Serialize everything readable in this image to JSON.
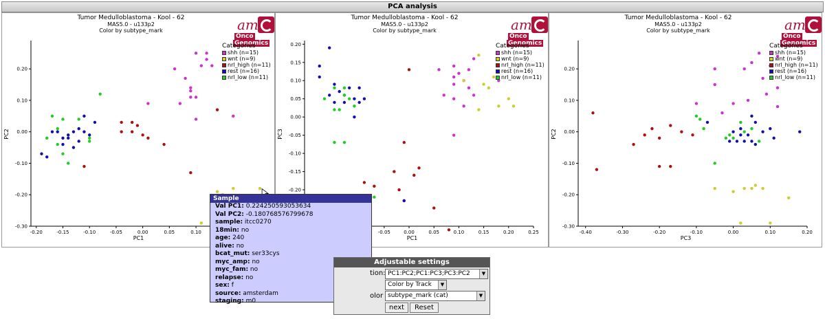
{
  "header": {
    "title": "PCA analysis"
  },
  "panels": [
    {
      "title": "Tumor Medulloblastoma - Kool - 62",
      "sub1": "MAS5.0 - u133p2",
      "sub2": "Color by subtype_mark"
    },
    {
      "title": "Tumor Medulloblastoma - Kool - 62",
      "sub1": "MAS5.0 - u133p2",
      "sub2": "Color by subtype_mark"
    },
    {
      "title": "Tumor Medulloblastoma - Kool - 62",
      "sub1": "MAS5.0 - u133p2",
      "sub2": "Color by subtype_mark"
    }
  ],
  "logo": {
    "line1": "am",
    "line2": "Onco",
    "line3": "Genomics"
  },
  "legend": {
    "title": "Categories",
    "items": [
      {
        "label": "shh (n=15)",
        "color": "#cc33cc"
      },
      {
        "label": "wnt (n=9)",
        "color": "#cccc33"
      },
      {
        "label": "nrl_high (n=11)",
        "color": "#aa1111"
      },
      {
        "label": "rest (n=16)",
        "color": "#1111aa"
      },
      {
        "label": "nrl_low (n=11)",
        "color": "#22cc22"
      }
    ]
  },
  "chart_data": [
    {
      "type": "scatter",
      "xlabel": "PC1",
      "ylabel": "PC2",
      "xlim": [
        -0.21,
        0.22
      ],
      "ylim": [
        -0.3,
        0.29
      ],
      "xticks": [
        "-0.20",
        "-0.15",
        "-0.10",
        "-0.05",
        "0.00",
        "0.05",
        "0.10",
        "0.15",
        "0.20"
      ],
      "xtickvals": [
        -0.2,
        -0.15,
        -0.1,
        -0.05,
        0.0,
        0.05,
        0.1,
        0.15,
        0.2
      ],
      "yticks": [
        "0.20",
        "0.10",
        "0.00",
        "-0.10",
        "-0.20",
        "-0.30"
      ],
      "ytickvals": [
        0.2,
        0.1,
        0.0,
        -0.1,
        -0.2,
        -0.3
      ],
      "series": [
        {
          "name": "shh (n=15)",
          "color": "#cc33cc",
          "points": [
            [
              0.06,
              0.2
            ],
            [
              0.1,
              0.25
            ],
            [
              0.12,
              0.25
            ],
            [
              0.11,
              0.21
            ],
            [
              0.13,
              0.21
            ],
            [
              0.12,
              0.23
            ],
            [
              0.08,
              0.17
            ],
            [
              0.09,
              0.14
            ],
            [
              0.09,
              0.13
            ],
            [
              0.1,
              0.11
            ],
            [
              0.09,
              0.11
            ],
            [
              0.07,
              0.09
            ],
            [
              0.1,
              0.04
            ],
            [
              0.17,
              0.05
            ],
            [
              0.01,
              0.09
            ]
          ]
        },
        {
          "name": "wnt (n=9)",
          "color": "#cccc33",
          "points": [
            [
              0.14,
              -0.19
            ],
            [
              0.15,
              -0.2
            ],
            [
              0.17,
              -0.18
            ],
            [
              0.14,
              -0.21
            ],
            [
              0.2,
              -0.24
            ],
            [
              0.16,
              -0.26
            ],
            [
              0.11,
              -0.29
            ],
            [
              0.19,
              -0.29
            ],
            [
              0.22,
              -0.18
            ]
          ]
        },
        {
          "name": "nrl_high (n=11)",
          "color": "#aa1111",
          "points": [
            [
              -0.02,
              0.03
            ],
            [
              -0.01,
              0.02
            ],
            [
              -0.02,
              0.0
            ],
            [
              0.0,
              -0.01
            ],
            [
              0.01,
              -0.02
            ],
            [
              -0.04,
              0.0
            ],
            [
              -0.11,
              -0.11
            ],
            [
              0.04,
              -0.04
            ],
            [
              0.09,
              -0.13
            ],
            [
              0.14,
              0.07
            ],
            [
              -0.04,
              0.03
            ]
          ]
        },
        {
          "name": "rest (n=16)",
          "color": "#1111aa",
          "points": [
            [
              -0.19,
              -0.07
            ],
            [
              -0.17,
              0.0
            ],
            [
              -0.16,
              0.0
            ],
            [
              -0.15,
              -0.02
            ],
            [
              -0.14,
              -0.02
            ],
            [
              -0.15,
              -0.04
            ],
            [
              -0.13,
              -0.05
            ],
            [
              -0.12,
              0.01
            ],
            [
              -0.11,
              0.0
            ],
            [
              -0.1,
              -0.01
            ],
            [
              -0.09,
              0.03
            ],
            [
              -0.12,
              -0.03
            ],
            [
              -0.14,
              -0.01
            ],
            [
              -0.18,
              -0.08
            ],
            [
              -0.11,
              0.05
            ],
            [
              -0.13,
              0.0
            ]
          ]
        },
        {
          "name": "nrl_low (n=11)",
          "color": "#22cc22",
          "points": [
            [
              -0.17,
              0.05
            ],
            [
              -0.16,
              -0.04
            ],
            [
              -0.15,
              -0.07
            ],
            [
              -0.14,
              -0.1
            ],
            [
              -0.16,
              0.01
            ],
            [
              -0.18,
              -0.02
            ],
            [
              -0.1,
              -0.03
            ],
            [
              -0.08,
              0.12
            ],
            [
              -0.1,
              -0.02
            ],
            [
              -0.12,
              0.04
            ],
            [
              -0.15,
              0.04
            ]
          ]
        }
      ]
    },
    {
      "type": "scatter",
      "xlabel": "PC1",
      "ylabel": "PC3",
      "xlim": [
        -0.21,
        0.25
      ],
      "ylim": [
        -0.3,
        0.21
      ],
      "xticks": [
        "-0.05",
        "0.00",
        "0.05",
        "0.10",
        "0.15",
        "0.20",
        "0.25"
      ],
      "xtickvals": [
        -0.05,
        0.0,
        0.05,
        0.1,
        0.15,
        0.2,
        0.25
      ],
      "yticks": [
        "0.20",
        "0.15",
        "0.10",
        "0.05",
        "0.00",
        "-0.05",
        "-0.10",
        "-0.15",
        "-0.20",
        "-0.25",
        "-0.30"
      ],
      "ytickvals": [
        0.2,
        0.15,
        0.1,
        0.05,
        0.0,
        -0.05,
        -0.1,
        -0.15,
        -0.2,
        -0.25,
        -0.3
      ],
      "series": [
        {
          "name": "shh (n=15)",
          "color": "#cc33cc",
          "points": [
            [
              0.13,
              0.16
            ],
            [
              0.09,
              0.14
            ],
            [
              0.12,
              0.13
            ],
            [
              0.1,
              0.12
            ],
            [
              0.06,
              0.13
            ],
            [
              0.09,
              0.11
            ],
            [
              0.11,
              0.1
            ],
            [
              0.09,
              0.09
            ],
            [
              0.12,
              0.08
            ],
            [
              0.13,
              0.06
            ],
            [
              0.09,
              0.05
            ],
            [
              0.07,
              0.06
            ],
            [
              0.11,
              0.03
            ],
            [
              0.18,
              0.1
            ],
            [
              0.09,
              -0.05
            ]
          ]
        },
        {
          "name": "wnt (n=9)",
          "color": "#cccc33",
          "points": [
            [
              0.14,
              0.17
            ],
            [
              0.16,
              0.08
            ],
            [
              0.17,
              0.11
            ],
            [
              0.15,
              0.09
            ],
            [
              0.2,
              0.05
            ],
            [
              0.21,
              0.03
            ],
            [
              0.18,
              0.03
            ],
            [
              0.14,
              0.02
            ],
            [
              0.11,
              0.1
            ]
          ]
        },
        {
          "name": "nrl_high (n=11)",
          "color": "#aa1111",
          "points": [
            [
              0.0,
              0.13
            ],
            [
              -0.01,
              -0.07
            ],
            [
              -0.02,
              -0.2
            ],
            [
              0.01,
              -0.16
            ],
            [
              0.02,
              -0.14
            ],
            [
              -0.03,
              -0.15
            ],
            [
              -0.07,
              -0.19
            ],
            [
              -0.09,
              -0.18
            ],
            [
              -0.01,
              -0.23
            ],
            [
              0.05,
              -0.25
            ],
            [
              0.08,
              -0.31
            ]
          ]
        },
        {
          "name": "rest (n=16)",
          "color": "#1111aa",
          "points": [
            [
              -0.18,
              0.14
            ],
            [
              -0.18,
              0.11
            ],
            [
              -0.16,
              0.19
            ],
            [
              -0.15,
              0.09
            ],
            [
              -0.14,
              0.07
            ],
            [
              -0.13,
              0.06
            ],
            [
              -0.12,
              0.08
            ],
            [
              -0.11,
              0.05
            ],
            [
              -0.1,
              0.04
            ],
            [
              -0.09,
              0.05
            ],
            [
              -0.16,
              0.06
            ],
            [
              -0.13,
              0.04
            ],
            [
              -0.1,
              0.08
            ],
            [
              -0.11,
              0.0
            ],
            [
              -0.15,
              0.04
            ],
            [
              -0.01,
              -0.23
            ]
          ]
        },
        {
          "name": "nrl_low (n=11)",
          "color": "#22cc22",
          "points": [
            [
              -0.15,
              0.08
            ],
            [
              -0.13,
              0.08
            ],
            [
              -0.13,
              0.06
            ],
            [
              -0.15,
              0.02
            ],
            [
              -0.14,
              0.02
            ],
            [
              -0.17,
              0.05
            ],
            [
              -0.15,
              -0.07
            ],
            [
              -0.13,
              -0.07
            ],
            [
              -0.07,
              -0.22
            ],
            [
              -0.11,
              0.03
            ],
            [
              -0.12,
              0.05
            ]
          ]
        }
      ]
    },
    {
      "type": "scatter",
      "xlabel": "PC3",
      "ylabel": "PC2",
      "xlim": [
        -0.42,
        0.2
      ],
      "ylim": [
        -0.3,
        0.29
      ],
      "xticks": [
        "-0.40",
        "-0.30",
        "-0.20",
        "-0.10",
        "0.00",
        "0.10",
        "0.20"
      ],
      "xtickvals": [
        -0.4,
        -0.3,
        -0.2,
        -0.1,
        0.0,
        0.1,
        0.2
      ],
      "yticks": [
        "0.20",
        "0.10",
        "0.00",
        "-0.10",
        "-0.20",
        "-0.30"
      ],
      "ytickvals": [
        0.2,
        0.1,
        0.0,
        -0.1,
        -0.2,
        -0.3
      ],
      "series": [
        {
          "name": "shh (n=15)",
          "color": "#cc33cc",
          "points": [
            [
              0.07,
              0.25
            ],
            [
              0.12,
              0.24
            ],
            [
              0.05,
              0.22
            ],
            [
              0.1,
              0.21
            ],
            [
              0.03,
              0.2
            ],
            [
              -0.05,
              0.2
            ],
            [
              0.08,
              0.17
            ],
            [
              -0.05,
              0.15
            ],
            [
              0.12,
              0.14
            ],
            [
              0.09,
              0.12
            ],
            [
              0.04,
              0.1
            ],
            [
              0.0,
              0.09
            ],
            [
              -0.1,
              0.09
            ],
            [
              -0.03,
              0.06
            ],
            [
              0.12,
              0.08
            ]
          ]
        },
        {
          "name": "wnt (n=9)",
          "color": "#cccc33",
          "points": [
            [
              0.03,
              -0.18
            ],
            [
              0.05,
              -0.18
            ],
            [
              0.06,
              -0.17
            ],
            [
              0.08,
              -0.18
            ],
            [
              0.0,
              -0.19
            ],
            [
              -0.05,
              -0.18
            ],
            [
              0.15,
              -0.21
            ],
            [
              0.02,
              -0.29
            ],
            [
              0.1,
              -0.29
            ]
          ]
        },
        {
          "name": "nrl_high (n=11)",
          "color": "#aa1111",
          "points": [
            [
              -0.38,
              0.06
            ],
            [
              -0.37,
              -0.12
            ],
            [
              -0.27,
              -0.04
            ],
            [
              -0.22,
              0.01
            ],
            [
              -0.24,
              -0.01
            ],
            [
              -0.2,
              -0.02
            ],
            [
              -0.17,
              0.02
            ],
            [
              -0.14,
              0.0
            ],
            [
              -0.11,
              -0.01
            ],
            [
              -0.2,
              -0.11
            ],
            [
              -0.17,
              -0.11
            ]
          ]
        },
        {
          "name": "rest (n=16)",
          "color": "#1111aa",
          "points": [
            [
              -0.07,
              0.03
            ],
            [
              0.0,
              0.0
            ],
            [
              0.02,
              -0.01
            ],
            [
              0.04,
              -0.01
            ],
            [
              0.05,
              -0.03
            ],
            [
              0.06,
              -0.04
            ],
            [
              0.03,
              -0.03
            ],
            [
              0.08,
              0.0
            ],
            [
              0.1,
              0.01
            ],
            [
              0.11,
              -0.02
            ],
            [
              0.05,
              0.05
            ],
            [
              0.06,
              0.03
            ],
            [
              0.01,
              -0.03
            ],
            [
              -0.01,
              -0.03
            ],
            [
              0.18,
              0.0
            ],
            [
              0.02,
              0.01
            ]
          ]
        },
        {
          "name": "nrl_low (n=11)",
          "color": "#22cc22",
          "points": [
            [
              -0.1,
              0.05
            ],
            [
              -0.09,
              0.04
            ],
            [
              -0.02,
              -0.02
            ],
            [
              0.0,
              -0.02
            ],
            [
              0.03,
              0.0
            ],
            [
              0.05,
              0.01
            ],
            [
              0.07,
              -0.03
            ],
            [
              -0.05,
              -0.1
            ],
            [
              -0.08,
              0.01
            ],
            [
              0.02,
              0.03
            ],
            [
              -0.01,
              -0.01
            ]
          ]
        }
      ]
    }
  ],
  "tooltip": {
    "title": "Sample",
    "rows": [
      {
        "key": "Val PC1:",
        "val": "0.224250593053634"
      },
      {
        "key": "Val PC2:",
        "val": "-0.180768576799678"
      },
      {
        "key": "sample:",
        "val": "itcc0270"
      },
      {
        "key": "18min:",
        "val": "no"
      },
      {
        "key": "age:",
        "val": "240"
      },
      {
        "key": "alive:",
        "val": "no"
      },
      {
        "key": "bcat_mut:",
        "val": "ser33cys"
      },
      {
        "key": "myc_amp:",
        "val": "no"
      },
      {
        "key": "myc_fam:",
        "val": "no"
      },
      {
        "key": "relapse:",
        "val": "no"
      },
      {
        "key": "sex:",
        "val": "f"
      },
      {
        "key": "source:",
        "val": "amsterdam"
      },
      {
        "key": "staging:",
        "val": "m0"
      }
    ]
  },
  "settings": {
    "title": "Adjustable settings",
    "projection_label": "tion:",
    "projection_value": "PC1:PC2;PC1:PC3;PC3:PC2",
    "colormode_value": "Color by Track",
    "color_label": "olor",
    "color_value": "subtype_mark (cat)",
    "next_label": "next",
    "reset_label": "Reset"
  }
}
